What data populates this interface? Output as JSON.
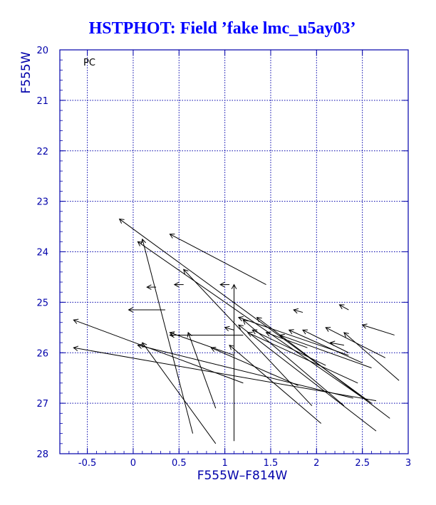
{
  "chart_data": {
    "type": "scatter",
    "title": "HSTPHOT: Field ’fake lmc_u5ay03’",
    "xlabel": "F555W–F814W",
    "ylabel": "F555W",
    "xlim": [
      -0.8,
      3.0
    ],
    "ylim": [
      28,
      20
    ],
    "y_inverted": true,
    "grid": true,
    "annotation": "PC",
    "x_ticks": [
      "-0.5",
      "0",
      "0.5",
      "1",
      "1.5",
      "2",
      "2.5",
      "3"
    ],
    "x_tick_values": [
      -0.5,
      0,
      0.5,
      1,
      1.5,
      2,
      2.5,
      3
    ],
    "y_ticks": [
      "20",
      "21",
      "22",
      "23",
      "24",
      "25",
      "26",
      "27",
      "28"
    ],
    "y_tick_values": [
      20,
      21,
      22,
      23,
      24,
      25,
      26,
      27,
      28
    ],
    "colors": {
      "title": "#0000ff",
      "axes": "#0000aa",
      "grid": "#0000aa",
      "vectors": "#000000"
    },
    "series": [
      {
        "kind": "displacement-vectors",
        "values": [
          [
            -0.15,
            23.35,
            2.6,
            27.0
          ],
          [
            0.05,
            23.8,
            2.55,
            26.95
          ],
          [
            0.4,
            23.65,
            1.45,
            24.65
          ],
          [
            0.55,
            24.35,
            1.95,
            27.05
          ],
          [
            -0.65,
            25.35,
            1.2,
            26.6
          ],
          [
            -0.65,
            25.9,
            2.65,
            26.95
          ],
          [
            0.05,
            25.85,
            2.4,
            26.9
          ],
          [
            0.1,
            25.8,
            0.9,
            27.8
          ],
          [
            0.1,
            23.75,
            0.65,
            27.6
          ],
          [
            0.4,
            25.6,
            1.1,
            26.05
          ],
          [
            0.6,
            25.6,
            0.9,
            27.1
          ],
          [
            0.4,
            25.65,
            1.2,
            25.65
          ],
          [
            1.1,
            24.65,
            1.1,
            27.75
          ],
          [
            -0.05,
            25.15,
            0.35,
            25.15
          ],
          [
            0.85,
            25.9,
            1.8,
            26.65
          ],
          [
            1.0,
            25.5,
            1.1,
            25.55
          ],
          [
            1.15,
            25.3,
            2.35,
            26.05
          ],
          [
            1.3,
            25.55,
            2.1,
            26.25
          ],
          [
            1.45,
            25.6,
            1.9,
            25.9
          ],
          [
            1.15,
            25.45,
            2.65,
            27.55
          ],
          [
            1.2,
            25.35,
            2.3,
            27.05
          ],
          [
            1.25,
            25.6,
            2.45,
            26.6
          ],
          [
            1.35,
            25.3,
            2.8,
            27.3
          ],
          [
            1.6,
            25.65,
            2.6,
            26.3
          ],
          [
            1.7,
            25.55,
            2.5,
            26.2
          ],
          [
            1.85,
            25.55,
            2.35,
            26.0
          ],
          [
            2.1,
            25.5,
            2.75,
            26.1
          ],
          [
            2.3,
            25.6,
            2.9,
            26.55
          ],
          [
            1.05,
            25.85,
            2.05,
            27.4
          ],
          [
            0.15,
            24.7,
            0.25,
            24.7
          ],
          [
            0.45,
            24.65,
            0.55,
            24.65
          ],
          [
            0.95,
            24.65,
            1.05,
            24.65
          ],
          [
            1.75,
            25.15,
            1.85,
            25.2
          ],
          [
            2.25,
            25.05,
            2.35,
            25.15
          ],
          [
            2.5,
            25.45,
            2.85,
            25.65
          ],
          [
            2.15,
            25.8,
            2.3,
            25.85
          ]
        ]
      }
    ]
  }
}
